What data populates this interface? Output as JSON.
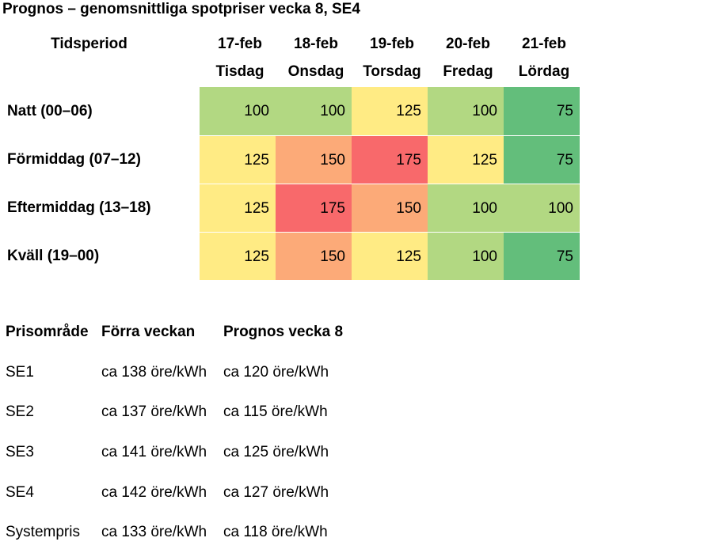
{
  "title": "Prognos – genomsnittliga spotpriser vecka 8, SE4",
  "forecast": {
    "period_header": "Tidsperiod",
    "days": [
      {
        "date": "17-feb",
        "weekday": "Tisdag"
      },
      {
        "date": "18-feb",
        "weekday": "Onsdag"
      },
      {
        "date": "19-feb",
        "weekday": "Torsdag"
      },
      {
        "date": "20-feb",
        "weekday": "Fredag"
      },
      {
        "date": "21-feb",
        "weekday": "Lördag"
      }
    ],
    "rows": [
      {
        "label": "Natt (00–06)",
        "values": [
          "100",
          "100",
          "125",
          "100",
          "75"
        ]
      },
      {
        "label": "Förmiddag (07–12)",
        "values": [
          "125",
          "150",
          "175",
          "125",
          "75"
        ]
      },
      {
        "label": "Eftermiddag (13–18)",
        "values": [
          "125",
          "175",
          "150",
          "100",
          "100"
        ]
      },
      {
        "label": "Kväll (19–00)",
        "values": [
          "125",
          "150",
          "125",
          "100",
          "75"
        ]
      }
    ],
    "colors": {
      "75": "#63be7b",
      "100": "#b2d882",
      "125": "#ffeb84",
      "150": "#fcaa78",
      "175": "#f8696b"
    }
  },
  "areas": {
    "headers": [
      "Prisområde",
      "Förra veckan",
      "Prognos vecka 8"
    ],
    "rows": [
      [
        "SE1",
        "ca 138 öre/kWh",
        "ca 120 öre/kWh"
      ],
      [
        "SE2",
        "ca 137 öre/kWh",
        "ca 115 öre/kWh"
      ],
      [
        "SE3",
        "ca 141 öre/kWh",
        "ca 125 öre/kWh"
      ],
      [
        "SE4",
        "ca 142 öre/kWh",
        "ca 127 öre/kWh"
      ],
      [
        "Systempris",
        "ca 133 öre/kWh",
        "ca 118 öre/kWh"
      ]
    ]
  }
}
